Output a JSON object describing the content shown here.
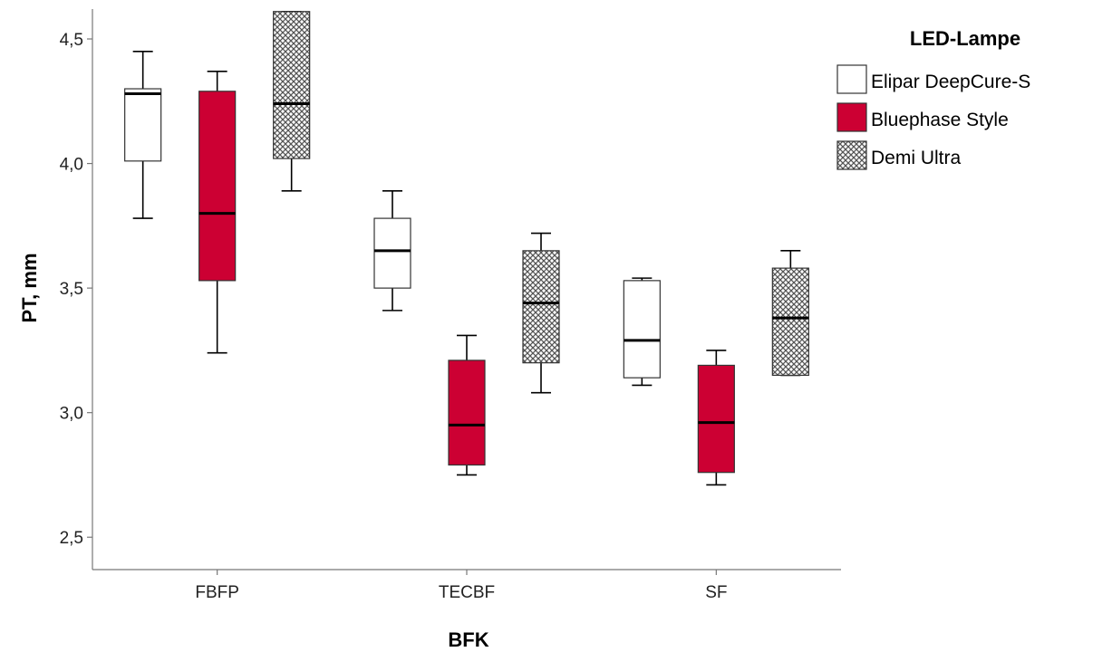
{
  "chart_data": {
    "type": "boxplot",
    "xlabel": "BFK",
    "ylabel": "PT, mm",
    "categories": [
      "FBFP",
      "TECBF",
      "SF"
    ],
    "ylim": [
      2.37,
      4.62
    ],
    "yticks": [
      "2,5",
      "3,0",
      "3,5",
      "4,0",
      "4,5"
    ],
    "ytick_values": [
      2.5,
      3.0,
      3.5,
      4.0,
      4.5
    ],
    "legend": {
      "title": "LED-Lampe",
      "position": "right-top"
    },
    "series": [
      {
        "name": "Elipar DeepCure-S",
        "fill": "#ffffff",
        "pattern": "none",
        "boxes": [
          {
            "category": "FBFP",
            "whisker_low": 3.78,
            "q1": 4.01,
            "median": 4.28,
            "q3": 4.3,
            "whisker_high": 4.45
          },
          {
            "category": "TECBF",
            "whisker_low": 3.41,
            "q1": 3.5,
            "median": 3.65,
            "q3": 3.78,
            "whisker_high": 3.89
          },
          {
            "category": "SF",
            "whisker_low": 3.11,
            "q1": 3.14,
            "median": 3.29,
            "q3": 3.53,
            "whisker_high": 3.54
          }
        ]
      },
      {
        "name": "Bluephase Style",
        "fill": "#cc0033",
        "pattern": "none",
        "boxes": [
          {
            "category": "FBFP",
            "whisker_low": 3.24,
            "q1": 3.53,
            "median": 3.8,
            "q3": 4.29,
            "whisker_high": 4.37
          },
          {
            "category": "TECBF",
            "whisker_low": 2.75,
            "q1": 2.79,
            "median": 2.95,
            "q3": 3.21,
            "whisker_high": 3.31
          },
          {
            "category": "SF",
            "whisker_low": 2.71,
            "q1": 2.76,
            "median": 2.96,
            "q3": 3.19,
            "whisker_high": 3.25
          }
        ]
      },
      {
        "name": "Demi Ultra",
        "fill": "#9a9a9a",
        "pattern": "crosshatch",
        "boxes": [
          {
            "category": "FBFP",
            "whisker_low": 3.89,
            "q1": 4.02,
            "median": 4.24,
            "q3": 4.61,
            "whisker_high": 4.61
          },
          {
            "category": "TECBF",
            "whisker_low": 3.08,
            "q1": 3.2,
            "median": 3.44,
            "q3": 3.65,
            "whisker_high": 3.72
          },
          {
            "category": "SF",
            "whisker_low": 3.15,
            "q1": 3.15,
            "median": 3.38,
            "q3": 3.58,
            "whisker_high": 3.65
          }
        ]
      }
    ]
  }
}
